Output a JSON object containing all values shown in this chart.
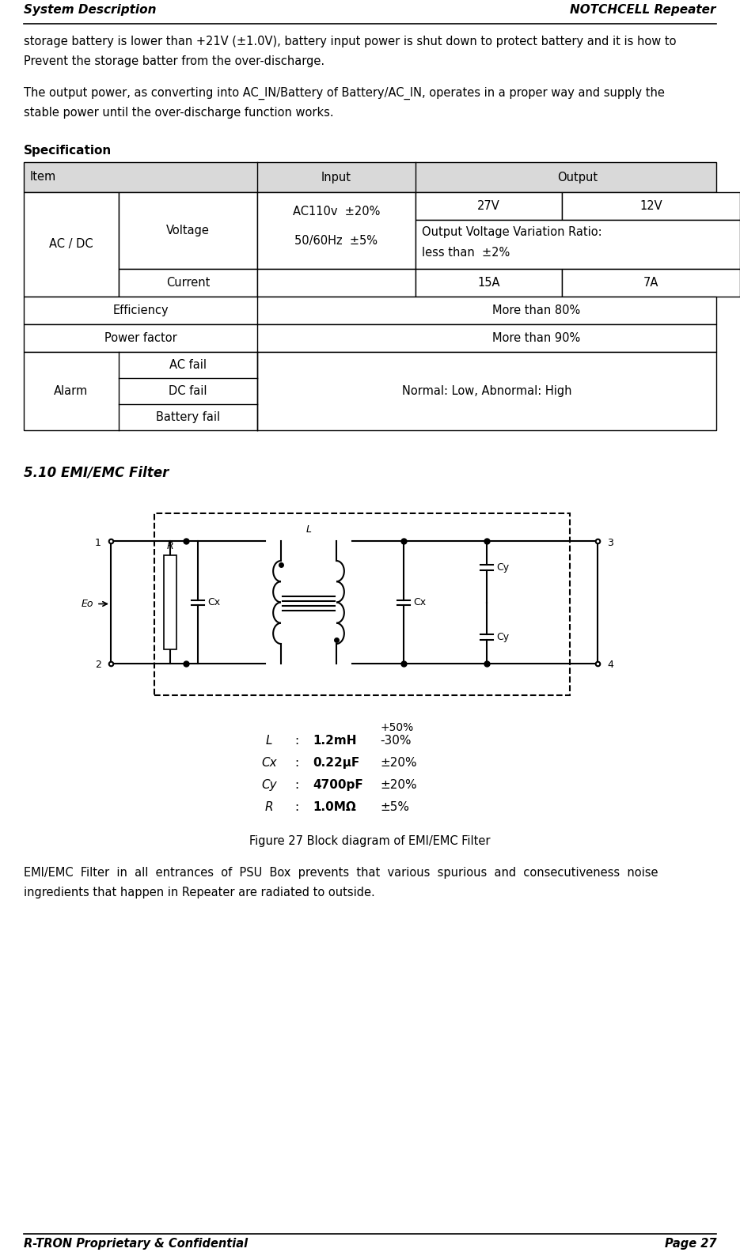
{
  "header_left": "System Description",
  "header_right": "NOTCHCELL Repeater",
  "footer_left": "R-TRON Proprietary & Confidential",
  "footer_right": "Page 27",
  "para1_line1": "storage battery is lower than +21V (±1.0V), battery input power is shut down to protect battery and it is how to",
  "para1_line2": "Prevent the storage batter from the over-discharge.",
  "para2_line1": "The output power, as converting into AC_IN/Battery of Battery/AC_IN, operates in a proper way and supply the",
  "para2_line2": "stable power until the over-discharge function works.",
  "spec_title": "Specification",
  "section_title": "5.10 EMI/EMC Filter",
  "fig_caption": "Figure 27 Block diagram of EMI/EMC Filter",
  "emi_desc_line1": "EMI/EMC  Filter  in  all  entrances  of  PSU  Box  prevents  that  various  spurious  and  consecutiveness  noise",
  "emi_desc_line2": "ingredients that happen in Repeater are radiated to outside.",
  "bg_color": "#ffffff",
  "table_header_bg": "#d9d9d9",
  "table_border_color": "#000000",
  "text_color": "#000000",
  "spec_rows": [
    {
      "comp": "L",
      "colon": ":",
      "val": "1.2mH",
      "tol": "-30%",
      "tol_upper": "+50%"
    },
    {
      "comp": "Cx",
      "colon": ":",
      "val": "0.22μF",
      "tol": "±20%",
      "tol_upper": ""
    },
    {
      "comp": "Cy",
      "colon": ":",
      "val": "4700pF",
      "tol": "±20%",
      "tol_upper": ""
    },
    {
      "comp": "R",
      "colon": ":",
      "val": "1.0MΩ",
      "tol": "±5%",
      "tol_upper": ""
    }
  ]
}
